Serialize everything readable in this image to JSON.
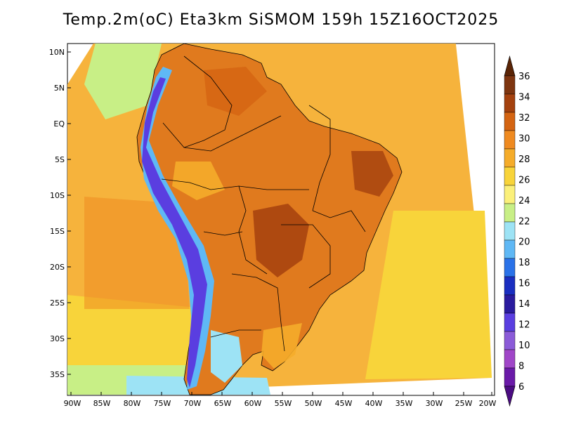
{
  "title": "Temp.2m(oC) Eta3km SiSMOM 159h 15Z16OCT2025",
  "y_axis_labels": [
    "10N",
    "5N",
    "EQ",
    "5S",
    "10S",
    "15S",
    "20S",
    "25S",
    "30S",
    "35S"
  ],
  "x_axis_labels": [
    "90W",
    "85W",
    "80W",
    "75W",
    "70W",
    "65W",
    "60W",
    "55W",
    "50W",
    "45W",
    "40W",
    "35W",
    "30W",
    "25W",
    "20W"
  ],
  "colorbar": {
    "labels": [
      "36",
      "34",
      "32",
      "30",
      "28",
      "26",
      "24",
      "22",
      "20",
      "18",
      "16",
      "14",
      "12",
      "10",
      "8",
      "6"
    ],
    "colors": [
      "#5a2406",
      "#7e3510",
      "#a4410e",
      "#d46412",
      "#ef8a20",
      "#f5ac2a",
      "#f8d43a",
      "#fbf07a",
      "#c8ef86",
      "#9de3f5",
      "#5fb8f5",
      "#2a72e8",
      "#1a2ec0",
      "#2a1b9e",
      "#5a3ee0",
      "#8b5bd8",
      "#a046c8",
      "#6a1aa8",
      "#4b0c82"
    ]
  },
  "colors": {
    "ocean_warm": "#f6b33c",
    "ocean_mid": "#f8d43a",
    "land": "#e07a1e",
    "border": "#000000"
  }
}
